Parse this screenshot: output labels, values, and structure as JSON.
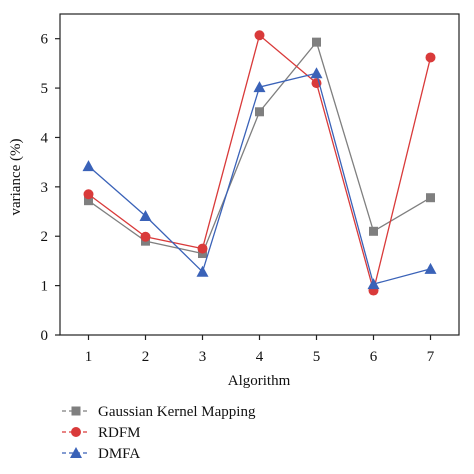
{
  "chart_data": {
    "type": "line",
    "title": "",
    "xlabel": "Algorithm",
    "ylabel": "variance (%)",
    "x": [
      1,
      2,
      3,
      4,
      5,
      6,
      7
    ],
    "xlim": [
      0.5,
      7.5
    ],
    "ylim": [
      0,
      6.5
    ],
    "xticks": [
      1,
      2,
      3,
      4,
      5,
      6,
      7
    ],
    "yticks": [
      0,
      1,
      2,
      3,
      4,
      5,
      6
    ],
    "grid": false,
    "legend_position": "bottom-left, below plot",
    "series": [
      {
        "name": "Gaussian Kernel Mapping",
        "color": "#7f7f7f",
        "marker": "square",
        "values": [
          2.72,
          1.9,
          1.65,
          4.52,
          5.93,
          2.1,
          2.78
        ]
      },
      {
        "name": "RDFM",
        "color": "#d93a3a",
        "marker": "circle",
        "values": [
          2.85,
          1.99,
          1.75,
          6.07,
          5.1,
          0.9,
          5.62
        ]
      },
      {
        "name": "DMFA",
        "color": "#3a62b8",
        "marker": "triangle",
        "values": [
          3.42,
          2.41,
          1.28,
          5.02,
          5.3,
          1.03,
          1.34
        ]
      }
    ]
  }
}
